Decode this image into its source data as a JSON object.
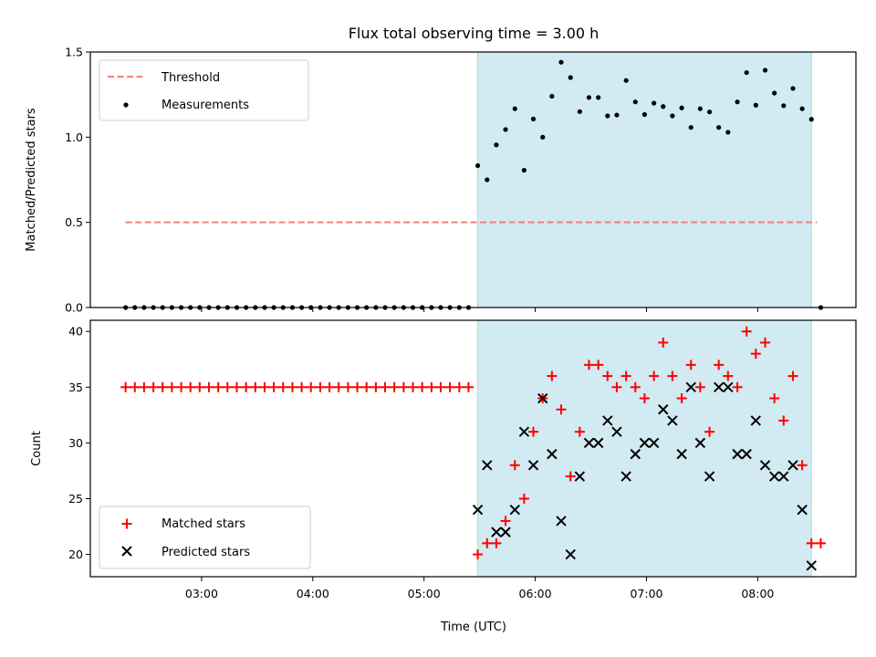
{
  "title": "Flux total observing time = 3.00 h",
  "xlabel": "Time (UTC)",
  "x_ticks": [
    "03:00",
    "04:00",
    "05:00",
    "06:00",
    "07:00",
    "08:00"
  ],
  "colors": {
    "threshold": "#f08080",
    "measurements": "#000000",
    "matched": "#ff0000",
    "predicted": "#000000",
    "span_fill": "#add8e6"
  },
  "chart_data": [
    {
      "type": "scatter",
      "panel": "top",
      "ylabel": "Matched/Predicted stars",
      "ylim": [
        0.0,
        1.5
      ],
      "y_ticks": [
        "0.0",
        "0.5",
        "1.0",
        "1.5"
      ],
      "x_unit": "hours UTC",
      "xlim": [
        2.0,
        8.883
      ],
      "shaded_span": [
        5.483,
        8.483
      ],
      "legend": {
        "position": "upper-left"
      },
      "threshold": {
        "name": "Threshold",
        "value": 0.5,
        "x_range": [
          2.317,
          8.533
        ]
      },
      "series": [
        {
          "name": "Measurements",
          "x": [
            2.317,
            2.4,
            2.483,
            2.567,
            2.65,
            2.733,
            2.817,
            2.9,
            2.983,
            3.067,
            3.15,
            3.233,
            3.317,
            3.4,
            3.483,
            3.567,
            3.65,
            3.733,
            3.817,
            3.9,
            3.983,
            4.067,
            4.15,
            4.233,
            4.317,
            4.4,
            4.483,
            4.567,
            4.65,
            4.733,
            4.817,
            4.9,
            4.983,
            5.067,
            5.15,
            5.233,
            5.317,
            5.4,
            5.483,
            5.567,
            5.65,
            5.733,
            5.817,
            5.9,
            5.983,
            6.067,
            6.15,
            6.233,
            6.317,
            6.4,
            6.483,
            6.567,
            6.65,
            6.733,
            6.817,
            6.9,
            6.983,
            7.067,
            7.15,
            7.233,
            7.317,
            7.4,
            7.483,
            7.567,
            7.65,
            7.733,
            7.817,
            7.9,
            7.983,
            8.067,
            8.15,
            8.233,
            8.317,
            8.4,
            8.483,
            8.567
          ],
          "y": [
            0,
            0,
            0,
            0,
            0,
            0,
            0,
            0,
            0,
            0,
            0,
            0,
            0,
            0,
            0,
            0,
            0,
            0,
            0,
            0,
            0,
            0,
            0,
            0,
            0,
            0,
            0,
            0,
            0,
            0,
            0,
            0,
            0,
            0,
            0,
            0,
            0,
            0,
            0.833,
            0.75,
            0.955,
            1.045,
            1.167,
            0.806,
            1.107,
            1.0,
            1.24,
            1.44,
            1.35,
            1.15,
            1.233,
            1.233,
            1.125,
            1.13,
            1.333,
            1.207,
            1.133,
            1.2,
            1.18,
            1.125,
            1.172,
            1.057,
            1.167,
            1.148,
            1.057,
            1.029,
            1.207,
            1.379,
            1.188,
            1.393,
            1.259,
            1.185,
            1.286,
            1.167,
            1.105,
            0
          ]
        }
      ]
    },
    {
      "type": "scatter",
      "panel": "bottom",
      "ylabel": "Count",
      "ylim": [
        18,
        41
      ],
      "y_ticks": [
        "20",
        "25",
        "30",
        "35",
        "40"
      ],
      "x_unit": "hours UTC",
      "xlim": [
        2.0,
        8.883
      ],
      "shaded_span": [
        5.483,
        8.483
      ],
      "legend": {
        "position": "lower-left"
      },
      "series": [
        {
          "name": "Matched stars",
          "marker": "plus",
          "x": [
            2.317,
            2.4,
            2.483,
            2.567,
            2.65,
            2.733,
            2.817,
            2.9,
            2.983,
            3.067,
            3.15,
            3.233,
            3.317,
            3.4,
            3.483,
            3.567,
            3.65,
            3.733,
            3.817,
            3.9,
            3.983,
            4.067,
            4.15,
            4.233,
            4.317,
            4.4,
            4.483,
            4.567,
            4.65,
            4.733,
            4.817,
            4.9,
            4.983,
            5.067,
            5.15,
            5.233,
            5.317,
            5.4,
            5.483,
            5.567,
            5.65,
            5.733,
            5.817,
            5.9,
            5.983,
            6.067,
            6.15,
            6.233,
            6.317,
            6.4,
            6.483,
            6.567,
            6.65,
            6.733,
            6.817,
            6.9,
            6.983,
            7.067,
            7.15,
            7.233,
            7.317,
            7.4,
            7.483,
            7.567,
            7.65,
            7.733,
            7.817,
            7.9,
            7.983,
            8.067,
            8.15,
            8.233,
            8.317,
            8.4,
            8.483,
            8.567
          ],
          "y": [
            35,
            35,
            35,
            35,
            35,
            35,
            35,
            35,
            35,
            35,
            35,
            35,
            35,
            35,
            35,
            35,
            35,
            35,
            35,
            35,
            35,
            35,
            35,
            35,
            35,
            35,
            35,
            35,
            35,
            35,
            35,
            35,
            35,
            35,
            35,
            35,
            35,
            35,
            20,
            21,
            21,
            23,
            28,
            25,
            31,
            34,
            36,
            33,
            27,
            31,
            37,
            37,
            36,
            35,
            36,
            35,
            34,
            36,
            39,
            36,
            34,
            37,
            35,
            31,
            37,
            36,
            35,
            40,
            38,
            39,
            34,
            32,
            36,
            28,
            21,
            21
          ]
        },
        {
          "name": "Predicted stars",
          "marker": "x",
          "x": [
            5.483,
            5.567,
            5.65,
            5.733,
            5.817,
            5.9,
            5.983,
            6.067,
            6.15,
            6.233,
            6.317,
            6.4,
            6.483,
            6.567,
            6.65,
            6.733,
            6.817,
            6.9,
            6.983,
            7.067,
            7.15,
            7.233,
            7.317,
            7.4,
            7.483,
            7.567,
            7.65,
            7.733,
            7.817,
            7.9,
            7.983,
            8.067,
            8.15,
            8.233,
            8.317,
            8.4,
            8.483
          ],
          "y": [
            24,
            28,
            22,
            22,
            24,
            31,
            28,
            34,
            29,
            23,
            20,
            27,
            30,
            30,
            32,
            31,
            27,
            29,
            30,
            30,
            33,
            32,
            29,
            35,
            30,
            27,
            35,
            35,
            29,
            29,
            32,
            28,
            27,
            27,
            28,
            24,
            19
          ]
        }
      ]
    }
  ]
}
